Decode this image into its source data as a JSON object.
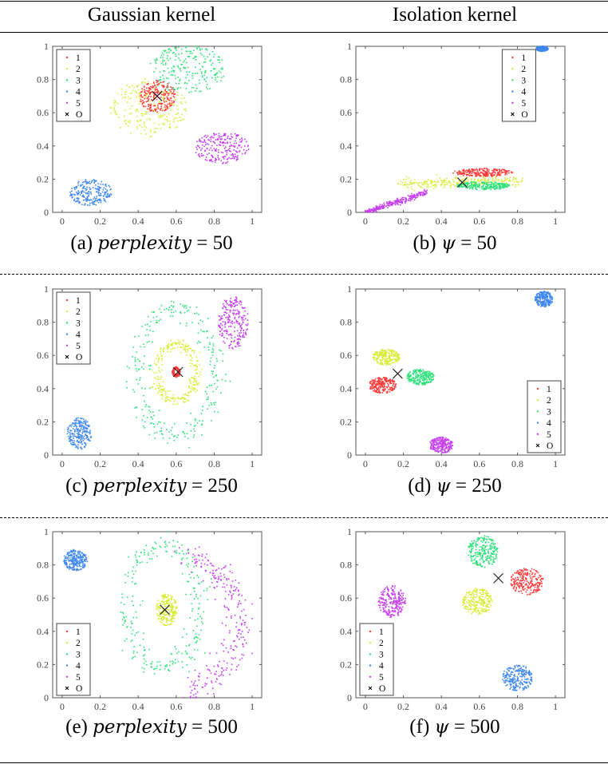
{
  "header": {
    "left": "Gaussian kernel",
    "right": "Isolation kernel"
  },
  "colors": {
    "1": "#ff3b3b",
    "2": "#d8ec3a",
    "3": "#2ee07a",
    "4": "#3d86f0",
    "5": "#c53cf0",
    "O": "#000000"
  },
  "chart_data": [
    {
      "type": "scatter",
      "caption_prefix": "(a)",
      "param": "perplexity",
      "value": "= 50",
      "xlim": [
        -0.05,
        1.05
      ],
      "ylim": [
        0,
        1
      ],
      "xticks": [
        "0",
        "0.2",
        "0.4",
        "0.6",
        "0.8",
        "1"
      ],
      "yticks": [
        "0",
        "0.2",
        "0.4",
        "0.6",
        "0.8",
        "1"
      ],
      "legend": [
        "1",
        "2",
        "3",
        "4",
        "5",
        "O"
      ],
      "legend_placement": "top-left",
      "series": [
        {
          "name": "2",
          "shape": "blob",
          "center": [
            0.45,
            0.63
          ],
          "spread": [
            0.13,
            0.11
          ]
        },
        {
          "name": "3",
          "shape": "blob",
          "center": [
            0.66,
            0.86
          ],
          "spread": [
            0.13,
            0.09
          ]
        },
        {
          "name": "1",
          "shape": "blob",
          "center": [
            0.5,
            0.7
          ],
          "spread": [
            0.06,
            0.06
          ]
        },
        {
          "name": "4",
          "shape": "blob",
          "center": [
            0.15,
            0.12
          ],
          "spread": [
            0.07,
            0.05
          ]
        },
        {
          "name": "5",
          "shape": "blob",
          "center": [
            0.84,
            0.39
          ],
          "spread": [
            0.09,
            0.06
          ]
        }
      ],
      "O": [
        0.5,
        0.7
      ]
    },
    {
      "type": "scatter",
      "caption_prefix": "(b)",
      "param": "ψ",
      "value": "= 50",
      "xlim": [
        -0.05,
        1.05
      ],
      "ylim": [
        0,
        1
      ],
      "xticks": [
        "0",
        "0.2",
        "0.4",
        "0.6",
        "0.8",
        "1"
      ],
      "yticks": [
        "0",
        "0.2",
        "0.4",
        "0.6",
        "0.8",
        "1"
      ],
      "legend": [
        "1",
        "2",
        "3",
        "4",
        "5",
        "O"
      ],
      "legend_placement": "top-right",
      "series": [
        {
          "name": "2",
          "shape": "line",
          "from": [
            0.18,
            0.17
          ],
          "to": [
            0.82,
            0.19
          ],
          "width": 0.015
        },
        {
          "name": "1",
          "shape": "blob",
          "center": [
            0.62,
            0.24
          ],
          "spread": [
            0.1,
            0.015
          ]
        },
        {
          "name": "3",
          "shape": "blob",
          "center": [
            0.62,
            0.16
          ],
          "spread": [
            0.09,
            0.015
          ]
        },
        {
          "name": "4",
          "shape": "blob",
          "center": [
            0.93,
            0.985
          ],
          "spread": [
            0.02,
            0.01
          ]
        },
        {
          "name": "5",
          "shape": "line",
          "from": [
            0.0,
            0.0
          ],
          "to": [
            0.32,
            0.12
          ],
          "width": 0.008
        }
      ],
      "O": [
        0.51,
        0.18
      ]
    },
    {
      "type": "scatter",
      "caption_prefix": "(c)",
      "param": "perplexity",
      "value": "= 250",
      "xlim": [
        -0.05,
        1.05
      ],
      "ylim": [
        0,
        1
      ],
      "xticks": [
        "0",
        "0.2",
        "0.4",
        "0.6",
        "0.8",
        "1"
      ],
      "yticks": [
        "0",
        "0.2",
        "0.4",
        "0.6",
        "0.8",
        "1"
      ],
      "legend": [
        "1",
        "2",
        "3",
        "4",
        "5",
        "O"
      ],
      "legend_placement": "top-left",
      "series": [
        {
          "name": "3",
          "shape": "ring",
          "center": [
            0.6,
            0.5
          ],
          "radius": [
            0.2,
            0.38
          ],
          "width": 0.03
        },
        {
          "name": "2",
          "shape": "ring",
          "center": [
            0.6,
            0.5
          ],
          "radius": [
            0.1,
            0.17
          ],
          "width": 0.015
        },
        {
          "name": "1",
          "shape": "ring",
          "center": [
            0.6,
            0.5
          ],
          "radius": [
            0.015,
            0.025
          ],
          "width": 0.003
        },
        {
          "name": "4",
          "shape": "blob",
          "center": [
            0.09,
            0.13
          ],
          "spread": [
            0.04,
            0.06
          ]
        },
        {
          "name": "5",
          "shape": "blob",
          "center": [
            0.9,
            0.8
          ],
          "spread": [
            0.05,
            0.1
          ]
        }
      ],
      "O": [
        0.61,
        0.5
      ]
    },
    {
      "type": "scatter",
      "caption_prefix": "(d)",
      "param": "ψ",
      "value": "= 250",
      "xlim": [
        -0.05,
        1.05
      ],
      "ylim": [
        0,
        1
      ],
      "xticks": [
        "0",
        "0.2",
        "0.4",
        "0.6",
        "0.8",
        "1"
      ],
      "yticks": [
        "0",
        "0.2",
        "0.4",
        "0.6",
        "0.8",
        "1"
      ],
      "legend": [
        "1",
        "2",
        "3",
        "4",
        "5",
        "O"
      ],
      "legend_placement": "bottom-right",
      "series": [
        {
          "name": "2",
          "shape": "blob",
          "center": [
            0.11,
            0.59
          ],
          "spread": [
            0.045,
            0.03
          ]
        },
        {
          "name": "1",
          "shape": "blob",
          "center": [
            0.09,
            0.42
          ],
          "spread": [
            0.045,
            0.03
          ]
        },
        {
          "name": "3",
          "shape": "blob",
          "center": [
            0.29,
            0.47
          ],
          "spread": [
            0.045,
            0.03
          ]
        },
        {
          "name": "4",
          "shape": "blob",
          "center": [
            0.94,
            0.94
          ],
          "spread": [
            0.03,
            0.03
          ]
        },
        {
          "name": "5",
          "shape": "blob",
          "center": [
            0.4,
            0.06
          ],
          "spread": [
            0.04,
            0.03
          ]
        }
      ],
      "O": [
        0.17,
        0.49
      ]
    },
    {
      "type": "scatter",
      "caption_prefix": "(e)",
      "param": "perplexity",
      "value": "= 500",
      "xlim": [
        -0.05,
        1.05
      ],
      "ylim": [
        0,
        1
      ],
      "xticks": [
        "0",
        "0.2",
        "0.4",
        "0.6",
        "0.8",
        "1"
      ],
      "yticks": [
        "0",
        "0.2",
        "0.4",
        "0.6",
        "0.8",
        "1"
      ],
      "legend": [
        "1",
        "2",
        "3",
        "4",
        "5",
        "O"
      ],
      "legend_placement": "bottom-left",
      "series": [
        {
          "name": "3",
          "shape": "ring",
          "center": [
            0.53,
            0.55
          ],
          "radius": [
            0.19,
            0.37
          ],
          "width": 0.03
        },
        {
          "name": "5",
          "shape": "arc",
          "center": [
            0.55,
            0.45
          ],
          "radius": [
            0.38,
            0.42
          ],
          "width": 0.04
        },
        {
          "name": "2",
          "shape": "blob",
          "center": [
            0.55,
            0.53
          ],
          "spread": [
            0.035,
            0.06
          ]
        },
        {
          "name": "4",
          "shape": "blob",
          "center": [
            0.07,
            0.83
          ],
          "spread": [
            0.04,
            0.04
          ]
        }
      ],
      "O": [
        0.54,
        0.53
      ]
    },
    {
      "type": "scatter",
      "caption_prefix": "(f)",
      "param": "ψ",
      "value": "= 500",
      "xlim": [
        -0.05,
        1.05
      ],
      "ylim": [
        0,
        1
      ],
      "xticks": [
        "0",
        "0.2",
        "0.4",
        "0.6",
        "0.8",
        "1"
      ],
      "yticks": [
        "0",
        "0.2",
        "0.4",
        "0.6",
        "0.8",
        "1"
      ],
      "legend": [
        "1",
        "2",
        "3",
        "4",
        "5",
        "O"
      ],
      "legend_placement": "bottom-left",
      "series": [
        {
          "name": "1",
          "shape": "blob",
          "center": [
            0.85,
            0.7
          ],
          "spread": [
            0.055,
            0.05
          ]
        },
        {
          "name": "3",
          "shape": "blob",
          "center": [
            0.62,
            0.88
          ],
          "spread": [
            0.05,
            0.06
          ]
        },
        {
          "name": "2",
          "shape": "blob",
          "center": [
            0.59,
            0.58
          ],
          "spread": [
            0.05,
            0.05
          ]
        },
        {
          "name": "5",
          "shape": "blob",
          "center": [
            0.14,
            0.58
          ],
          "spread": [
            0.045,
            0.06
          ]
        },
        {
          "name": "4",
          "shape": "blob",
          "center": [
            0.8,
            0.12
          ],
          "spread": [
            0.05,
            0.05
          ]
        }
      ],
      "O": [
        0.7,
        0.72
      ]
    }
  ]
}
